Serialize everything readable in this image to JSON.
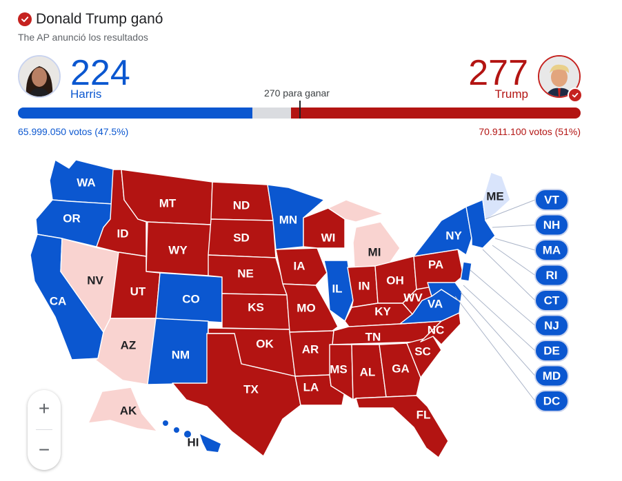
{
  "header": {
    "title": "Donald Trump ganó",
    "subtitle": "The AP anunció los resultados"
  },
  "harris": {
    "electoral_votes": "224",
    "name": "Harris",
    "popular_votes": "65.999.050 votos (47.5%)",
    "color": "#0b57d0"
  },
  "trump": {
    "electoral_votes": "277",
    "name": "Trump",
    "popular_votes": "70.911.100 votos (51%)",
    "color": "#b31412"
  },
  "threshold_label": "270 para ganar",
  "bar": {
    "harris_fraction": 0.4163,
    "trump_fraction": 0.5149,
    "total": 538
  },
  "colors": {
    "dem": "#0b57d0",
    "rep": "#b31412",
    "dem_light": "#d9e4fb",
    "rep_light": "#f9d3d0"
  },
  "states": {
    "WA": "WA",
    "OR": "OR",
    "CA": "CA",
    "NV": "NV",
    "ID": "ID",
    "MT": "MT",
    "WY": "WY",
    "UT": "UT",
    "AZ": "AZ",
    "CO": "CO",
    "NM": "NM",
    "ND": "ND",
    "SD": "SD",
    "NE": "NE",
    "KS": "KS",
    "OK": "OK",
    "TX": "TX",
    "MN": "MN",
    "IA": "IA",
    "MO": "MO",
    "AR": "AR",
    "LA": "LA",
    "WI": "WI",
    "IL": "IL",
    "MI": "MI",
    "IN": "IN",
    "OH": "OH",
    "KY": "KY",
    "TN": "TN",
    "MS": "MS",
    "AL": "AL",
    "GA": "GA",
    "FL": "FL",
    "SC": "SC",
    "NC": "NC",
    "VA": "VA",
    "WV": "WV",
    "PA": "PA",
    "NY": "NY",
    "ME": "ME",
    "AK": "AK",
    "HI": "HI"
  },
  "small_states": [
    "VT",
    "NH",
    "MA",
    "RI",
    "CT",
    "NJ",
    "DE",
    "MD",
    "DC"
  ],
  "zoom": {
    "in": "+",
    "out": "−"
  }
}
